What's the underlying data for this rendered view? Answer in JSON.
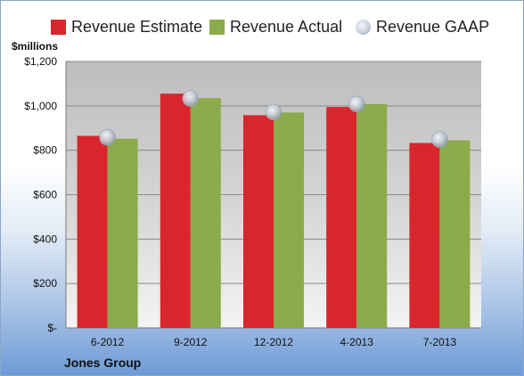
{
  "chart_data": {
    "type": "bar",
    "unit_label": "$millions",
    "categories": [
      "6-2012",
      "9-2012",
      "12-2012",
      "4-2013",
      "7-2013"
    ],
    "series": [
      {
        "name": "Revenue Estimate",
        "type": "bar",
        "color": "#d9262c",
        "values": [
          865,
          1055,
          958,
          995,
          833
        ]
      },
      {
        "name": "Revenue Actual",
        "type": "bar",
        "color": "#8bab4c",
        "values": [
          852,
          1035,
          970,
          1008,
          845
        ]
      },
      {
        "name": "Revenue GAAP",
        "type": "marker",
        "color": "#b9c0cc",
        "values": [
          858,
          1033,
          972,
          1008,
          848
        ]
      }
    ],
    "ylim": [
      0,
      1200
    ],
    "yticks": [
      0,
      200,
      400,
      600,
      800,
      1000,
      1200
    ],
    "ytick_labels": [
      "$-",
      "$200",
      "$400",
      "$600",
      "$800",
      "$1,000",
      "$1,200"
    ],
    "grid": true,
    "legend_position": "top",
    "plot_background": "gradient gray",
    "company": "Jones Group"
  }
}
